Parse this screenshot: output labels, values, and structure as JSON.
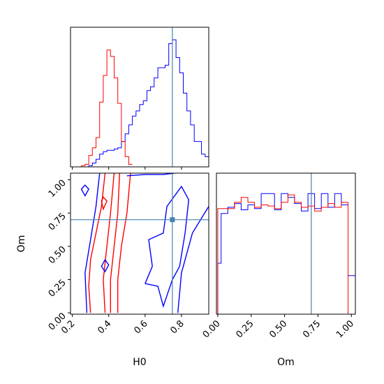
{
  "chart_data": {
    "type": "corner",
    "parameters": [
      "H0",
      "Om"
    ],
    "truth": {
      "H0": 0.75,
      "Om": 0.7
    },
    "colors": {
      "samples_a": "#0000ff",
      "samples_b": "#ff0000",
      "truth": "#4682b4"
    },
    "panels": [
      {
        "id": "h0-marginal",
        "type": "histogram",
        "parameter": "H0",
        "xlim": [
          0.19,
          0.95
        ],
        "tick_values": [
          0.2,
          0.4,
          0.6,
          0.8
        ],
        "series": [
          {
            "color": "#0000ff",
            "x": [
              0.19,
              0.29,
              0.31,
              0.33,
              0.35,
              0.37,
              0.39,
              0.41,
              0.43,
              0.45,
              0.47,
              0.49,
              0.51,
              0.53,
              0.55,
              0.57,
              0.59,
              0.61,
              0.63,
              0.65,
              0.67,
              0.69,
              0.71,
              0.73,
              0.75,
              0.77,
              0.79,
              0.81,
              0.83,
              0.85,
              0.87,
              0.89,
              0.91,
              0.93,
              0.95
            ],
            "values": [
              0,
              0.01,
              0.03,
              0.06,
              0.1,
              0.12,
              0.13,
              0.13,
              0.14,
              0.15,
              0.2,
              0.26,
              0.33,
              0.4,
              0.44,
              0.49,
              0.52,
              0.6,
              0.63,
              0.7,
              0.78,
              0.78,
              0.8,
              0.97,
              1.0,
              0.86,
              0.74,
              0.58,
              0.44,
              0.33,
              0.2,
              0.2,
              0.1,
              0.08
            ]
          },
          {
            "color": "#ff0000",
            "x": [
              0.19,
              0.25,
              0.27,
              0.29,
              0.31,
              0.33,
              0.35,
              0.37,
              0.39,
              0.41,
              0.43,
              0.45,
              0.47,
              0.49,
              0.51,
              0.53
            ],
            "values": [
              0,
              0.01,
              0.02,
              0.09,
              0.15,
              0.23,
              0.51,
              0.72,
              0.92,
              0.87,
              0.7,
              0.5,
              0.2,
              0.08,
              0.02
            ]
          }
        ]
      },
      {
        "id": "h0-om-contour",
        "type": "contour",
        "x_parameter": "H0",
        "y_parameter": "Om",
        "xlim": [
          0.19,
          0.95
        ],
        "ylim": [
          -0.01,
          1.05
        ],
        "x_ticks": [
          "0.2",
          "0.4",
          "0.6",
          "0.8"
        ],
        "y_ticks": [
          "0.00",
          "0.25",
          "0.50",
          "0.75",
          "1.00"
        ],
        "xlabel": "H0",
        "ylabel": "Om",
        "contours": [
          {
            "color": "#ff0000",
            "points": [
              [
                0.3,
                0.0
              ],
              [
                0.29,
                0.2
              ],
              [
                0.3,
                0.4
              ],
              [
                0.33,
                0.6
              ],
              [
                0.36,
                0.8
              ],
              [
                0.38,
                1.05
              ]
            ]
          },
          {
            "color": "#ff0000",
            "points": [
              [
                0.38,
                0.0
              ],
              [
                0.37,
                0.25
              ],
              [
                0.39,
                0.5
              ],
              [
                0.41,
                0.75
              ],
              [
                0.43,
                1.05
              ]
            ]
          },
          {
            "color": "#ff0000",
            "points": [
              [
                0.41,
                0.0
              ],
              [
                0.41,
                0.25
              ],
              [
                0.43,
                0.5
              ],
              [
                0.45,
                0.75
              ],
              [
                0.46,
                1.05
              ]
            ]
          },
          {
            "color": "#ff0000",
            "points": [
              [
                0.45,
                0.0
              ],
              [
                0.45,
                0.25
              ],
              [
                0.47,
                0.5
              ],
              [
                0.5,
                0.75
              ],
              [
                0.52,
                1.05
              ]
            ]
          },
          {
            "color": "#0000ff",
            "points": [
              [
                0.28,
                0.0
              ],
              [
                0.27,
                0.3
              ],
              [
                0.3,
                0.55
              ],
              [
                0.33,
                0.8
              ],
              [
                0.35,
                1.05
              ]
            ]
          },
          {
            "color": "#0000ff",
            "points": [
              [
                0.6,
                0.22
              ],
              [
                0.64,
                0.35
              ],
              [
                0.62,
                0.55
              ],
              [
                0.7,
                0.6
              ],
              [
                0.72,
                0.8
              ],
              [
                0.8,
                0.95
              ],
              [
                0.84,
                0.85
              ],
              [
                0.82,
                0.6
              ],
              [
                0.79,
                0.35
              ],
              [
                0.75,
                0.25
              ],
              [
                0.7,
                0.05
              ],
              [
                0.67,
                0.2
              ],
              [
                0.6,
                0.22
              ]
            ]
          },
          {
            "color": "#0000ff",
            "points": [
              [
                0.78,
                0.0
              ],
              [
                0.8,
                0.3
              ],
              [
                0.86,
                0.6
              ],
              [
                0.95,
                0.8
              ]
            ]
          },
          {
            "color": "#0000ff",
            "points": [
              [
                0.5,
                1.03
              ],
              [
                0.6,
                1.04
              ],
              [
                0.7,
                1.04
              ],
              [
                0.76,
                1.05
              ]
            ]
          }
        ]
      },
      {
        "id": "om-marginal",
        "type": "histogram",
        "parameter": "Om",
        "xlim": [
          -0.01,
          1.03
        ],
        "x_ticks": [
          "0.00",
          "0.25",
          "0.50",
          "0.75",
          "1.00"
        ],
        "xlabel": "Om",
        "series": [
          {
            "color": "#0000ff",
            "x": [
              -0.01,
              0.0,
              0.025,
              0.075,
              0.125,
              0.175,
              0.225,
              0.275,
              0.325,
              0.375,
              0.425,
              0.475,
              0.525,
              0.575,
              0.625,
              0.675,
              0.725,
              0.775,
              0.825,
              0.875,
              0.925,
              0.975,
              1.0,
              1.03
            ],
            "values": [
              0,
              0.41,
              0.81,
              0.86,
              0.89,
              0.84,
              0.88,
              0.85,
              0.97,
              0.97,
              0.84,
              0.97,
              0.94,
              0.89,
              0.83,
              0.97,
              0.85,
              0.97,
              0.86,
              0.97,
              0.88,
              0.31,
              0.31
            ]
          },
          {
            "color": "#ff0000",
            "x": [
              -0.01,
              0.0,
              0.025,
              0.075,
              0.125,
              0.175,
              0.225,
              0.275,
              0.325,
              0.375,
              0.425,
              0.475,
              0.525,
              0.575,
              0.625,
              0.675,
              0.725,
              0.775,
              0.825,
              0.875,
              0.925,
              0.975,
              1.0
            ],
            "values": [
              0,
              0.85,
              0.85,
              0.85,
              0.9,
              0.94,
              0.9,
              0.86,
              0.88,
              0.87,
              0.85,
              0.9,
              0.96,
              0.9,
              0.86,
              0.87,
              0.83,
              0.86,
              0.89,
              0.86,
              0.9,
              0.0
            ]
          }
        ]
      }
    ]
  }
}
